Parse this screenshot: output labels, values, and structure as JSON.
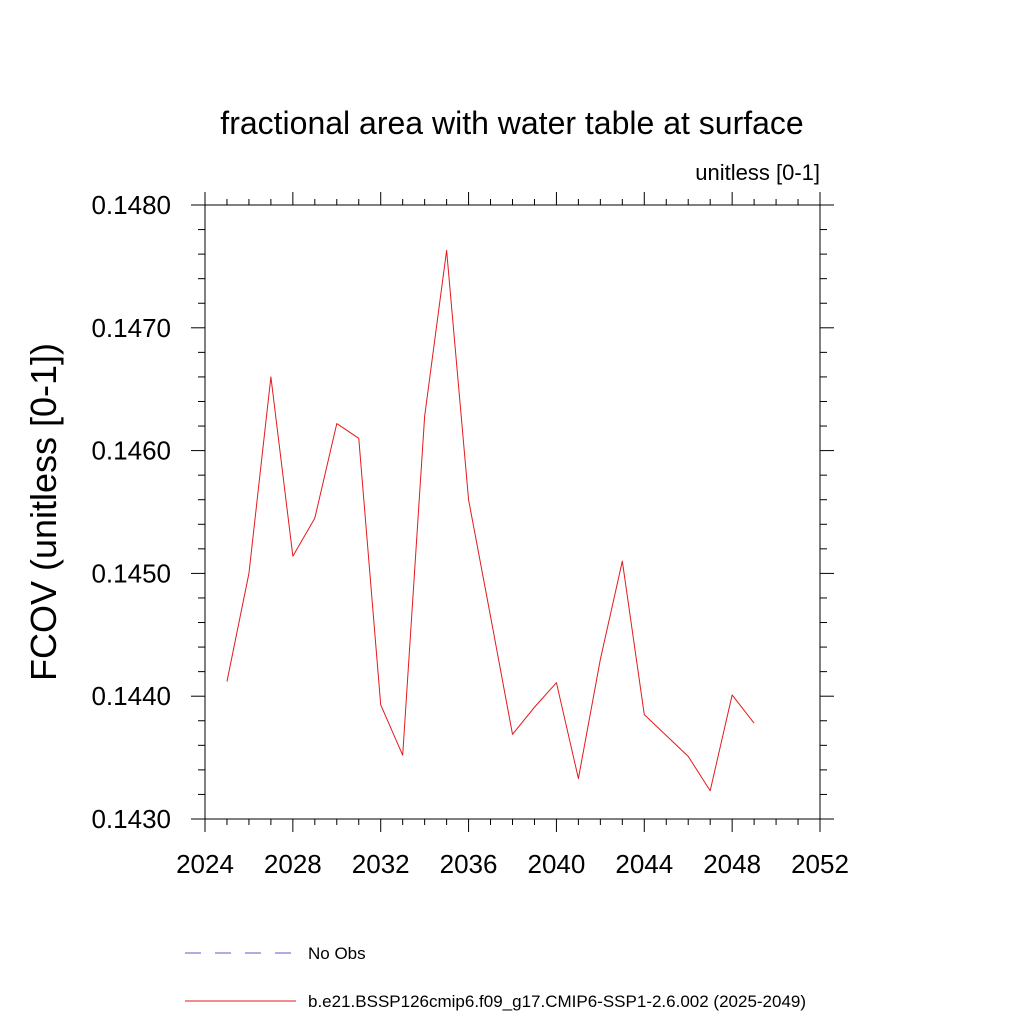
{
  "chart_data": {
    "type": "line",
    "title": "fractional area with water table at surface",
    "units_label": "unitless [0-1]",
    "ylabel": "FCOV  (unitless [0-1])",
    "xlabel": "",
    "xlim": [
      2024,
      2052
    ],
    "ylim": [
      0.143,
      0.148
    ],
    "x_ticks": [
      "2024",
      "2028",
      "2032",
      "2036",
      "2040",
      "2044",
      "2048",
      "2052"
    ],
    "y_ticks": [
      "0.1430",
      "0.1440",
      "0.1450",
      "0.1460",
      "0.1470",
      "0.1480"
    ],
    "grid": false,
    "legend_position": "bottom",
    "series": [
      {
        "name": "No Obs",
        "color": "#5b5bc8",
        "style": "dashed",
        "x": [],
        "values": []
      },
      {
        "name": "b.e21.BSSP126cmip6.f09_g17.CMIP6-SSP1-2.6.002 (2025-2049)",
        "color": "#e31a1c",
        "style": "solid",
        "x": [
          2025,
          2026,
          2027,
          2028,
          2029,
          2030,
          2031,
          2032,
          2033,
          2034,
          2035,
          2036,
          2037,
          2038,
          2039,
          2040,
          2041,
          2042,
          2043,
          2044,
          2045,
          2046,
          2047,
          2048,
          2049
        ],
        "values": [
          0.14412,
          0.145,
          0.1466,
          0.14514,
          0.14545,
          0.14622,
          0.1461,
          0.14393,
          0.14352,
          0.14628,
          0.14763,
          0.1456,
          0.14465,
          0.14369,
          0.14391,
          0.14411,
          0.14333,
          0.1443,
          0.1451,
          0.14385,
          0.14368,
          0.14351,
          0.14323,
          0.14401,
          0.14378
        ]
      }
    ]
  }
}
